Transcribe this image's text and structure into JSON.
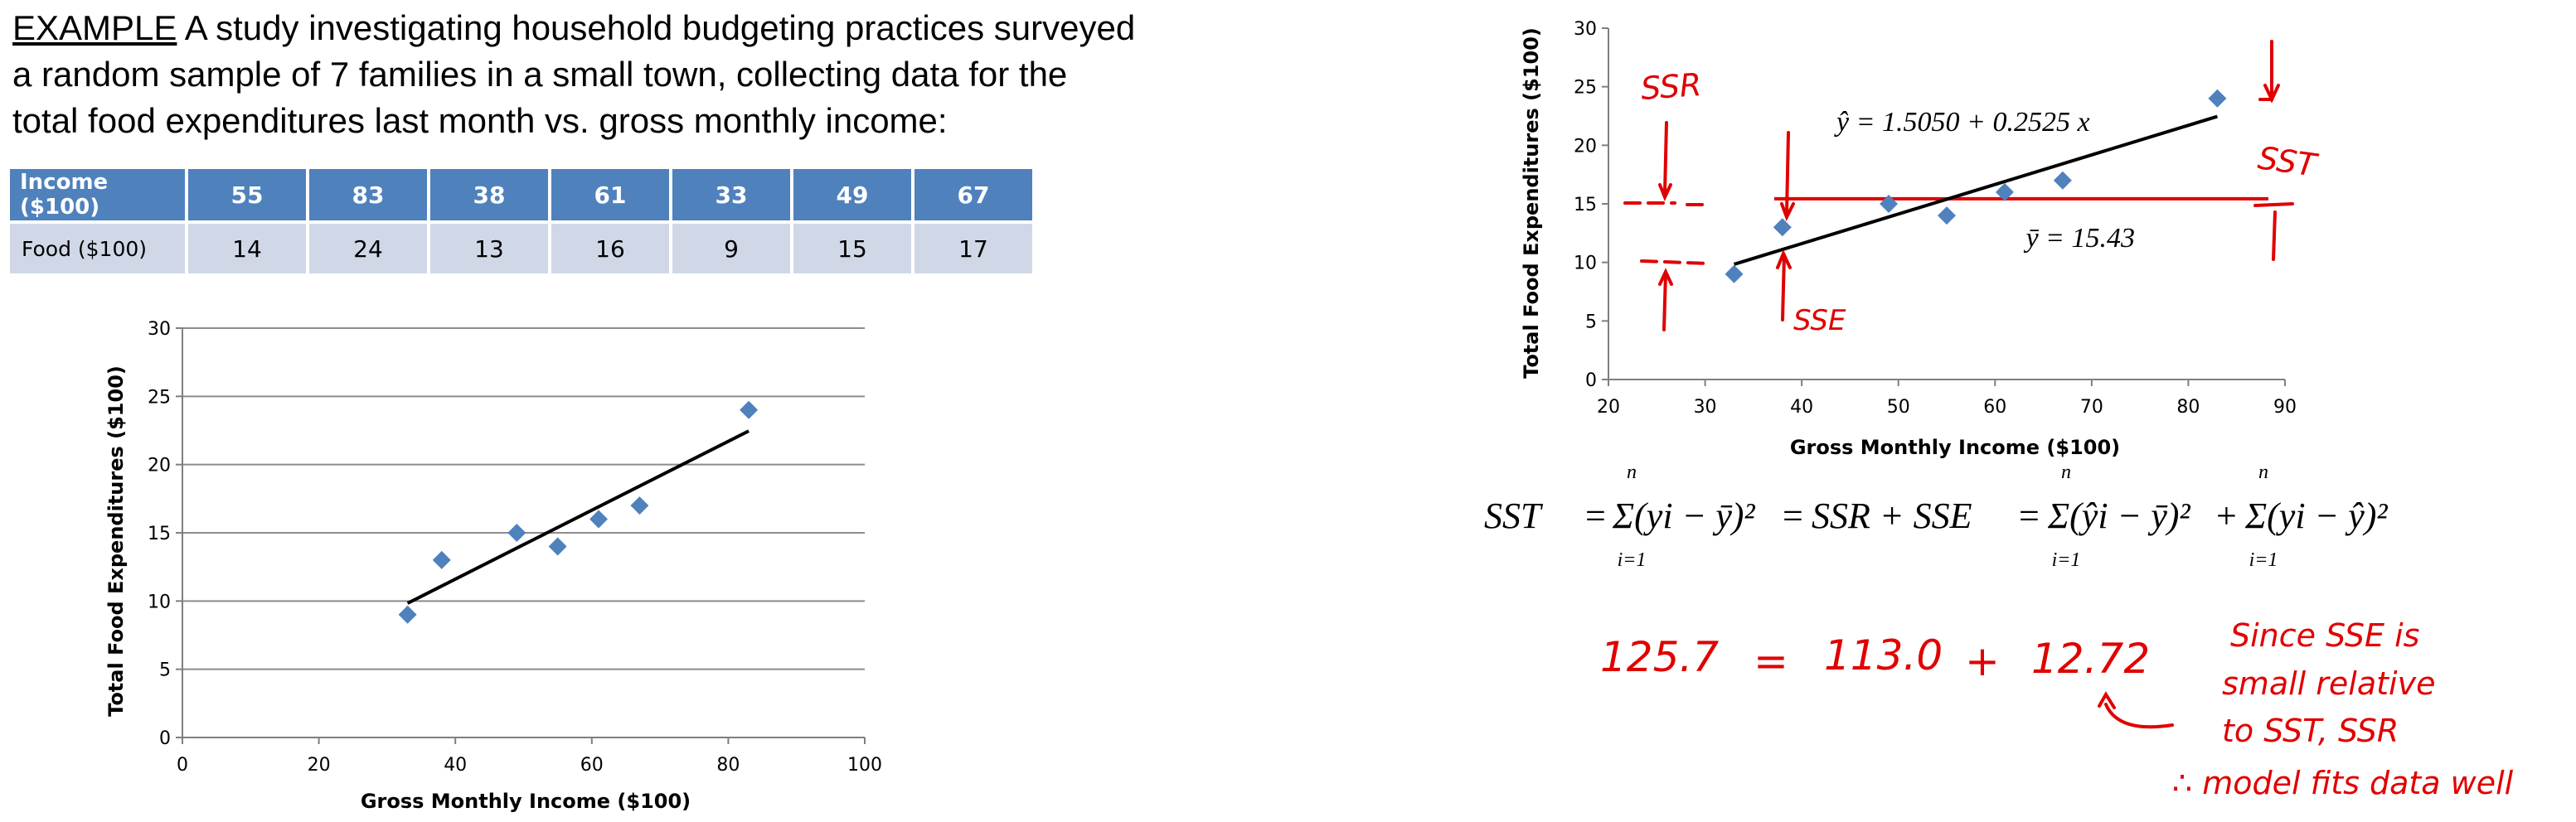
{
  "intro": {
    "label": "EXAMPLE",
    "text": " A study investigating household budgeting practices surveyed a random sample of 7 families in a small town, collecting data for the total food expenditures last month vs. gross monthly income:"
  },
  "table": {
    "income_label": "Income ($100)",
    "food_label": "Food ($100)",
    "income": [
      55,
      83,
      38,
      61,
      33,
      49,
      67
    ],
    "food": [
      14,
      24,
      13,
      16,
      9,
      15,
      17
    ]
  },
  "chart_data": [
    {
      "type": "scatter",
      "xlabel": "Gross Monthly Income ($100)",
      "ylabel": "Total Food Expenditures ($100)",
      "xlim": [
        0,
        100
      ],
      "ylim": [
        0,
        30
      ],
      "xticks": [
        0,
        20,
        40,
        60,
        80,
        100
      ],
      "yticks": [
        0,
        5,
        10,
        15,
        20,
        25,
        30
      ],
      "points": [
        [
          55,
          14
        ],
        [
          83,
          24
        ],
        [
          38,
          13
        ],
        [
          61,
          16
        ],
        [
          33,
          9
        ],
        [
          49,
          15
        ],
        [
          67,
          17
        ]
      ],
      "trendline": {
        "intercept": 1.505,
        "slope": 0.2525,
        "x_range": [
          33,
          83
        ]
      },
      "grid": "horizontal",
      "marker_color": "#4f81bd"
    },
    {
      "type": "scatter",
      "xlabel": "Gross Monthly Income ($100)",
      "ylabel": "Total Food Expenditures ($100)",
      "xlim": [
        20,
        90
      ],
      "ylim": [
        0,
        30
      ],
      "xticks": [
        20,
        30,
        40,
        50,
        60,
        70,
        80,
        90
      ],
      "yticks": [
        0,
        5,
        10,
        15,
        20,
        25,
        30
      ],
      "points": [
        [
          55,
          14
        ],
        [
          83,
          24
        ],
        [
          38,
          13
        ],
        [
          61,
          16
        ],
        [
          33,
          9
        ],
        [
          49,
          15
        ],
        [
          67,
          17
        ]
      ],
      "trendline": {
        "intercept": 1.505,
        "slope": 0.2525,
        "x_range": [
          33,
          83
        ]
      },
      "mean_line": {
        "y": 15.43,
        "color": "#e00000"
      },
      "regression_label": "ŷ = 1.5050 + 0.2525 x",
      "mean_label": "ȳ = 15.43",
      "grid": "none",
      "marker_color": "#4f81bd"
    }
  ],
  "annotations": {
    "ss_r": "SSR",
    "ss_t": "SST",
    "ss_e": "SSE"
  },
  "formula": {
    "lhs": "SST",
    "sum1": "Σ(yi − ȳ)²",
    "mid": "SSR + SSE",
    "sum2": "Σ(ŷi − ȳ)²",
    "sum3": "Σ(yi − ŷ)²",
    "sum_top": "n",
    "sum_bottom": "i=1"
  },
  "handwritten": {
    "equation": [
      "125.7",
      "=",
      "113.0",
      "+",
      "12.72"
    ],
    "note_lines": [
      "Since SSE is",
      "small relative",
      "to SST, SSR",
      "∴ model fits data well"
    ]
  },
  "colors": {
    "table_header": "#4f81bd",
    "table_row": "#d0d8e8",
    "marker": "#4f81bd",
    "ink_red": "#e00000"
  }
}
